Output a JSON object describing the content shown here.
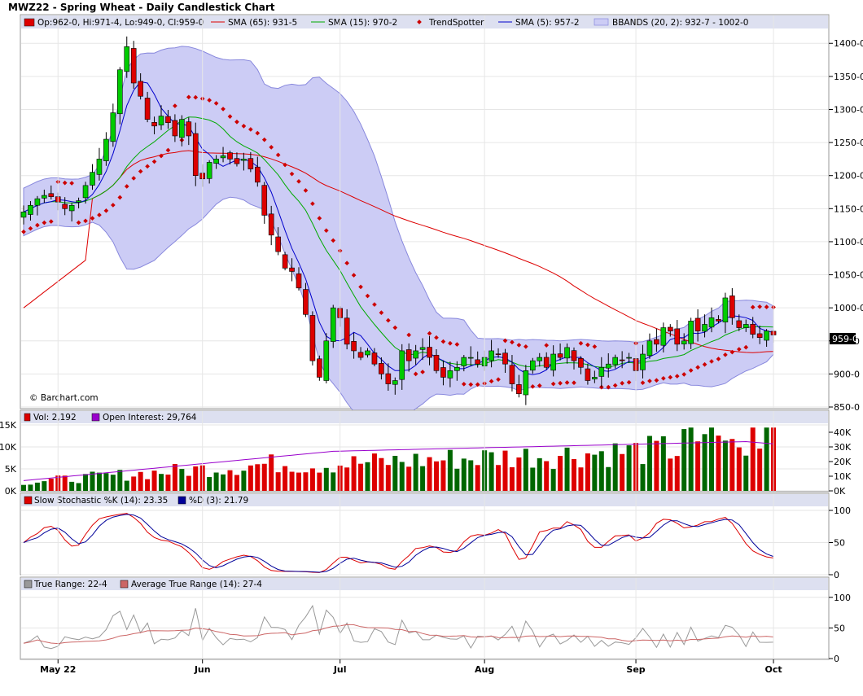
{
  "title": "MWZ22 - Spring Wheat - Daily Candlestick Chart",
  "watermark": "© Barchart.com",
  "price_legend": {
    "ohlc": "Op:962-0, Hi:971-4, Lo:949-0, Cl:959-0",
    "sma65": "SMA (65): 931-5",
    "sma15": "SMA (15): 970-2",
    "trendspotter": "TrendSpotter",
    "sma5": "SMA (5): 957-2",
    "bbands": "BBANDS (20, 2): 932-7 - 1002-0"
  },
  "last_price_label": "959-0",
  "volume_legend": {
    "vol": "Vol: 2,192",
    "oi": "Open Interest: 29,764"
  },
  "stoch_legend": {
    "k": "Slow Stochastic %K (14): 23.35",
    "d": "%D (3): 21.79"
  },
  "tr_legend": {
    "tr": "True Range: 22-4",
    "atr": "Average True Range (14): 27-4"
  },
  "colors": {
    "up": "#00cc00",
    "down": "#dd0000",
    "sma65": "#dd0000",
    "sma15": "#00aa00",
    "sma5": "#0000cc",
    "trendspotter": "#cc0000",
    "bbands_fill": "#ccccf5",
    "oi": "#9900cc",
    "vol_up": "#006600",
    "vol_down": "#dd0000",
    "stoch_k": "#dd0000",
    "stoch_d": "#000099",
    "true_range": "#999999",
    "atr": "#cc6666",
    "legend_bg": "#dde0f0"
  },
  "chart_data": {
    "type": "candlestick",
    "x_labels": [
      "May 22",
      "Jun",
      "Jul",
      "Aug",
      "Sep",
      "Oct"
    ],
    "x_label_index": [
      5,
      26,
      46,
      67,
      89,
      109
    ],
    "price_axis": {
      "ticks": [
        "1400-0",
        "1350-0",
        "1300-0",
        "1250-0",
        "1200-0",
        "1150-0",
        "1100-0",
        "1050-0",
        "1000-0",
        "950-0",
        "900-0",
        "850-0"
      ],
      "values": [
        1400,
        1350,
        1300,
        1250,
        1200,
        1150,
        1100,
        1050,
        1000,
        950,
        900,
        850
      ],
      "range": [
        850,
        1420
      ]
    },
    "volume_axis": {
      "left_ticks": [
        "15K",
        "10K",
        "5K",
        "0K"
      ],
      "left_values": [
        15000,
        10000,
        5000,
        0
      ],
      "right_ticks": [
        "40K",
        "30K",
        "20K",
        "10K",
        "0K"
      ],
      "right_values": [
        40000,
        30000,
        20000,
        10000,
        0
      ]
    },
    "stoch_axis": {
      "ticks": [
        "100",
        "50",
        "0"
      ],
      "values": [
        100,
        50,
        0
      ]
    },
    "tr_axis": {
      "ticks": [
        "100",
        "50",
        "0"
      ],
      "values": [
        100,
        50,
        0
      ]
    },
    "close_series": [
      1145,
      1155,
      1165,
      1170,
      1168,
      1160,
      1150,
      1155,
      1162,
      1185,
      1205,
      1225,
      1255,
      1295,
      1360,
      1395,
      1340,
      1320,
      1285,
      1275,
      1290,
      1280,
      1260,
      1285,
      1260,
      1200,
      1195,
      1220,
      1225,
      1230,
      1225,
      1218,
      1225,
      1210,
      1190,
      1140,
      1110,
      1085,
      1060,
      1055,
      1030,
      990,
      920,
      895,
      950,
      1000,
      985,
      945,
      935,
      925,
      935,
      915,
      900,
      885,
      890,
      935,
      920,
      935,
      940,
      925,
      905,
      895,
      905,
      910,
      925,
      925,
      915,
      925,
      935,
      930,
      915,
      885,
      870,
      905,
      920,
      925,
      910,
      930,
      925,
      940,
      920,
      910,
      890,
      895,
      910,
      915,
      925,
      920,
      925,
      905,
      930,
      950,
      945,
      970,
      965,
      945,
      950,
      980,
      965,
      975,
      985,
      980,
      1015,
      985,
      970,
      975,
      960,
      955,
      965,
      959
    ]
  }
}
